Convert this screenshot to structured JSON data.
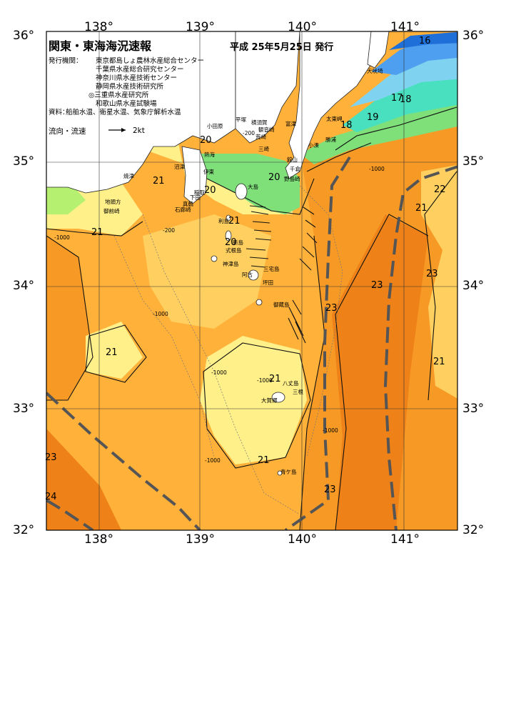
{
  "header": {
    "title": "関東・東海海況速報",
    "issue_date": "平成 25年5月25日 発行"
  },
  "issuers": {
    "label": "発行機関：",
    "orgs": [
      "東京都島しょ農林水産総合センター",
      "千葉県水産総合研究センター",
      "神奈川県水産技術センター",
      "静岡県水産技術研究所",
      "◎三重県水産研究所",
      "和歌山県水産試験場"
    ]
  },
  "sources": {
    "label": "資料：",
    "text": "船舶水温、衛星水温、気象庁解析水温"
  },
  "legend": {
    "current_label": "流向・流速",
    "scale_label": "2kt"
  },
  "axes": {
    "latitudes": [
      "36°",
      "35°",
      "34°",
      "33°",
      "32°"
    ],
    "longitudes": [
      "138°",
      "139°",
      "140°",
      "141°"
    ]
  },
  "temperature_labels": [
    {
      "v": "16"
    },
    {
      "v": "17"
    },
    {
      "v": "18"
    },
    {
      "v": "18"
    },
    {
      "v": "19"
    },
    {
      "v": "20"
    },
    {
      "v": "20"
    },
    {
      "v": "20"
    },
    {
      "v": "20"
    },
    {
      "v": "21"
    },
    {
      "v": "21"
    },
    {
      "v": "21"
    },
    {
      "v": "21"
    },
    {
      "v": "21"
    },
    {
      "v": "21"
    },
    {
      "v": "21"
    },
    {
      "v": "21"
    },
    {
      "v": "22"
    },
    {
      "v": "23"
    },
    {
      "v": "23"
    },
    {
      "v": "23"
    },
    {
      "v": "23"
    },
    {
      "v": "23"
    },
    {
      "v": "24"
    }
  ],
  "depth_labels": [
    "-1000",
    "-200",
    "-1000",
    "-1000",
    "-1000",
    "-1000",
    "-1000",
    "-200",
    "-1000"
  ],
  "place_names": [
    "犬吠埼",
    "太東岬",
    "勝浦",
    "小湊",
    "千倉",
    "野島崎",
    "館山",
    "三崎",
    "荒崎",
    "観音崎",
    "横須賀",
    "富津",
    "平塚",
    "小田原",
    "真鶴",
    "熱海",
    "伊東",
    "稲取",
    "下田",
    "石廊崎",
    "焼津",
    "御前崎",
    "地頭方",
    "大島",
    "利島",
    "新島",
    "式根島",
    "神津島",
    "三宅島",
    "御蔵島",
    "八丈島",
    "三根",
    "大賀郷",
    "青ケ島",
    "沼津",
    "坪田",
    "阿古"
  ],
  "colors": {
    "deep_blue": "#1f6fd8",
    "blue": "#4f9ff0",
    "light_blue": "#7fd3f0",
    "cyan": "#49e0c0",
    "green": "#7fe07a",
    "light_green": "#b6f070",
    "yellow": "#fff08a",
    "light_orange": "#ffd060",
    "orange": "#ffb13a",
    "dark_orange": "#f79a25",
    "deep_orange": "#ee8218",
    "kuroshio_axis": "#555555"
  }
}
